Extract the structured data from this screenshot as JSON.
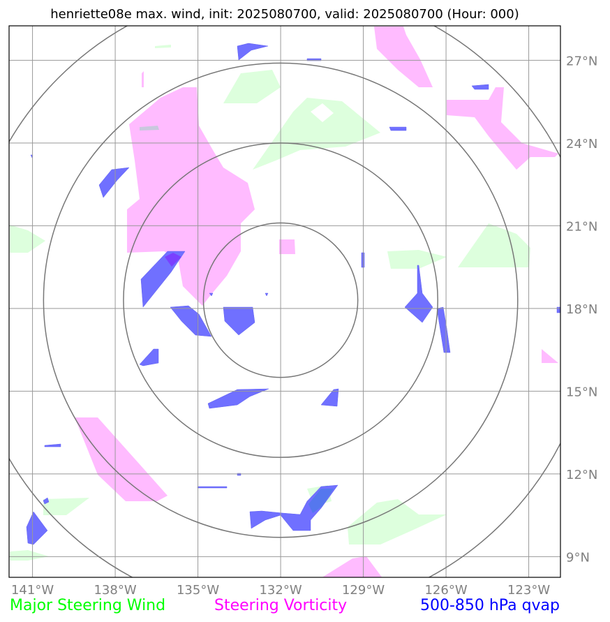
{
  "chart_data": {
    "type": "map",
    "title": "henriette08e max. wind, init: 2025080700, valid: 2025080700 (Hour: 000)",
    "x_ticks": [
      "141°W",
      "138°W",
      "135°W",
      "132°W",
      "129°W",
      "126°W",
      "123°W"
    ],
    "x_tick_values": [
      -141,
      -138,
      -135,
      -132,
      -129,
      -126,
      -123
    ],
    "y_ticks": [
      "27°N",
      "24°N",
      "21°N",
      "18°N",
      "15°N",
      "12°N",
      "9°N"
    ],
    "y_tick_values": [
      27,
      24,
      21,
      18,
      15,
      12,
      9
    ],
    "xlim": [
      -141.85,
      -121.85
    ],
    "ylim": [
      8.25,
      28.25
    ],
    "center": {
      "lon": -132.0,
      "lat": 18.3
    },
    "range_rings_deg": [
      2.8,
      5.7,
      8.6,
      11.4
    ],
    "grid": true,
    "legend": [
      {
        "label": "Major Steering Wind",
        "color": "#00ff00"
      },
      {
        "label": "Steering Vorticity",
        "color": "#ff00ff"
      },
      {
        "label": "500-850 hPa qvap",
        "color": "#0000ff"
      }
    ],
    "fill_colors": {
      "wind": "#ddffdd",
      "vorticity": "#ffbbff",
      "qvap": "#7070ff"
    }
  }
}
